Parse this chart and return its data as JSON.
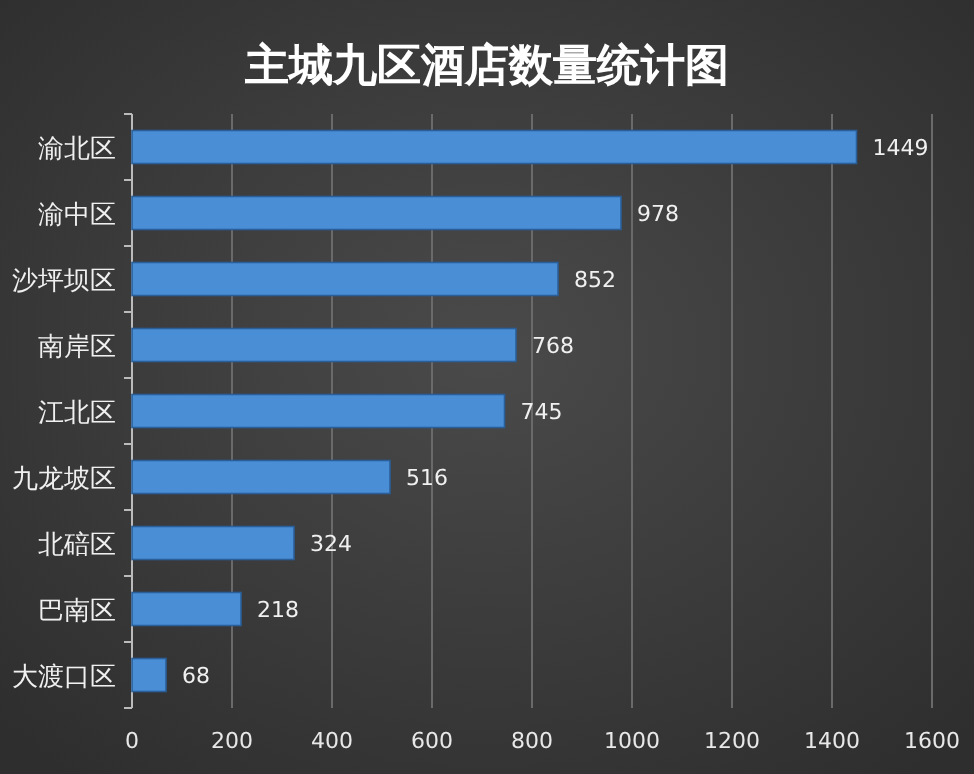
{
  "chart_data": {
    "type": "bar",
    "orientation": "horizontal",
    "title": "主城九区酒店数量统计图",
    "categories": [
      "渝北区",
      "渝中区",
      "沙坪坝区",
      "南岸区",
      "江北区",
      "九龙坡区",
      "北碚区",
      "巴南区",
      "大渡口区"
    ],
    "values": [
      1449,
      978,
      852,
      768,
      745,
      516,
      324,
      218,
      68
    ],
    "color": "#4a8fd6",
    "xlim": [
      0,
      1600
    ],
    "xticks": [
      0,
      200,
      400,
      600,
      800,
      1000,
      1200,
      1400,
      1600
    ],
    "grid": "x",
    "data_labels": true
  }
}
